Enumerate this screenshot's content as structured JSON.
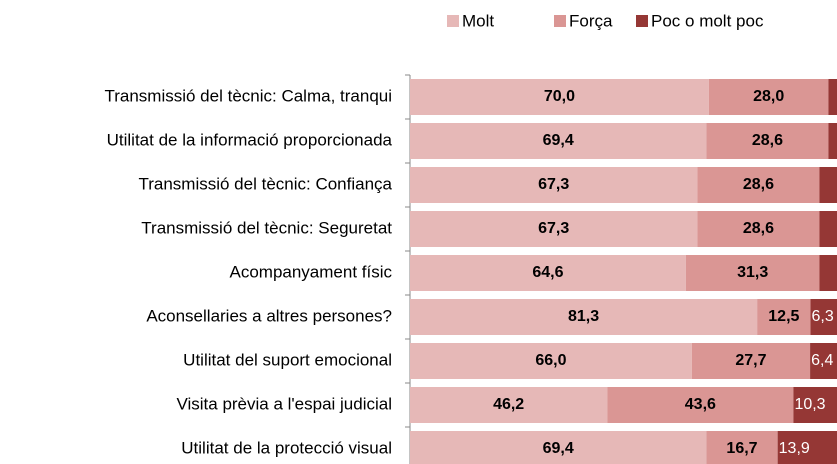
{
  "chart_data": {
    "type": "stacked-bar-horizontal",
    "categories": [
      "Transmissió del tècnic: Calma, tranqui",
      "Utilitat de la informació proporcionada",
      "Transmissió del tècnic: Confiança",
      "Transmissió del tècnic: Seguretat",
      "Acompanyament físic",
      "Aconsellaries a altres persones?",
      "Utilitat del suport emocional",
      "Visita prèvia a l'espai judicial",
      "Utilitat de la protecció visual"
    ],
    "series": [
      {
        "name": "Molt",
        "color": "#e6b8b7",
        "values": [
          70.0,
          69.4,
          67.3,
          67.3,
          64.6,
          81.3,
          66.0,
          46.2,
          69.4
        ],
        "value_labels": [
          "70,0",
          "69,4",
          "67,3",
          "67,3",
          "64,6",
          "81,3",
          "66,0",
          "46,2",
          "69,4"
        ]
      },
      {
        "name": "Força",
        "color": "#da9694",
        "values": [
          28.0,
          28.6,
          28.6,
          28.6,
          31.3,
          12.5,
          27.7,
          43.6,
          16.7
        ],
        "value_labels": [
          "28,0",
          "28,6",
          "28,6",
          "28,6",
          "31,3",
          "12,5",
          "27,7",
          "43,6",
          "16,7"
        ]
      },
      {
        "name": "Poc o molt poc",
        "color": "#953735",
        "values": [
          2.0,
          2.0,
          4.1,
          4.1,
          4.1,
          6.3,
          6.4,
          10.3,
          13.9
        ],
        "value_labels": [
          null,
          null,
          null,
          null,
          null,
          "6,3",
          "6,4",
          "10,3",
          "13,9"
        ]
      }
    ],
    "xlim": [
      0,
      100
    ],
    "legend": "top"
  }
}
